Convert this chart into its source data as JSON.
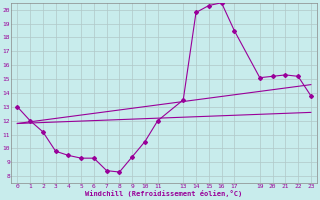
{
  "xlabel": "Windchill (Refroidissement éolien,°C)",
  "background_color": "#c8ecec",
  "grid_color": "#b0c8c8",
  "line_color": "#990099",
  "x_ticks": [
    0,
    1,
    2,
    3,
    4,
    5,
    6,
    7,
    8,
    9,
    10,
    11,
    13,
    14,
    15,
    16,
    17,
    19,
    20,
    21,
    22,
    23
  ],
  "x_tick_labels": [
    "0",
    "1",
    "2",
    "3",
    "4",
    "5",
    "6",
    "7",
    "8",
    "9",
    "10",
    "11",
    "13",
    "14",
    "15",
    "16",
    "17",
    "19",
    "20",
    "21",
    "22",
    "23"
  ],
  "xlim": [
    -0.5,
    23.5
  ],
  "ylim": [
    7.5,
    20.5
  ],
  "y_ticks": [
    8,
    9,
    10,
    11,
    12,
    13,
    14,
    15,
    16,
    17,
    18,
    19,
    20
  ],
  "y_tick_labels": [
    "8",
    "9",
    "10",
    "11",
    "12",
    "13",
    "14",
    "15",
    "16",
    "17",
    "18",
    "19",
    "20"
  ],
  "series1_x": [
    0,
    1,
    2,
    3,
    4,
    5,
    6,
    7,
    8,
    9,
    10,
    11,
    13,
    14,
    15,
    16,
    17,
    19,
    20,
    21,
    22,
    23
  ],
  "series1_y": [
    13,
    12,
    11.2,
    9.8,
    9.5,
    9.3,
    9.3,
    8.4,
    8.3,
    9.4,
    10.5,
    12.0,
    13.5,
    19.8,
    20.3,
    20.5,
    18.5,
    15.1,
    15.2,
    15.3,
    15.2,
    13.8
  ],
  "series2_x": [
    0,
    23
  ],
  "series2_y": [
    11.8,
    12.6
  ],
  "series3_x": [
    0,
    23
  ],
  "series3_y": [
    11.8,
    14.6
  ]
}
